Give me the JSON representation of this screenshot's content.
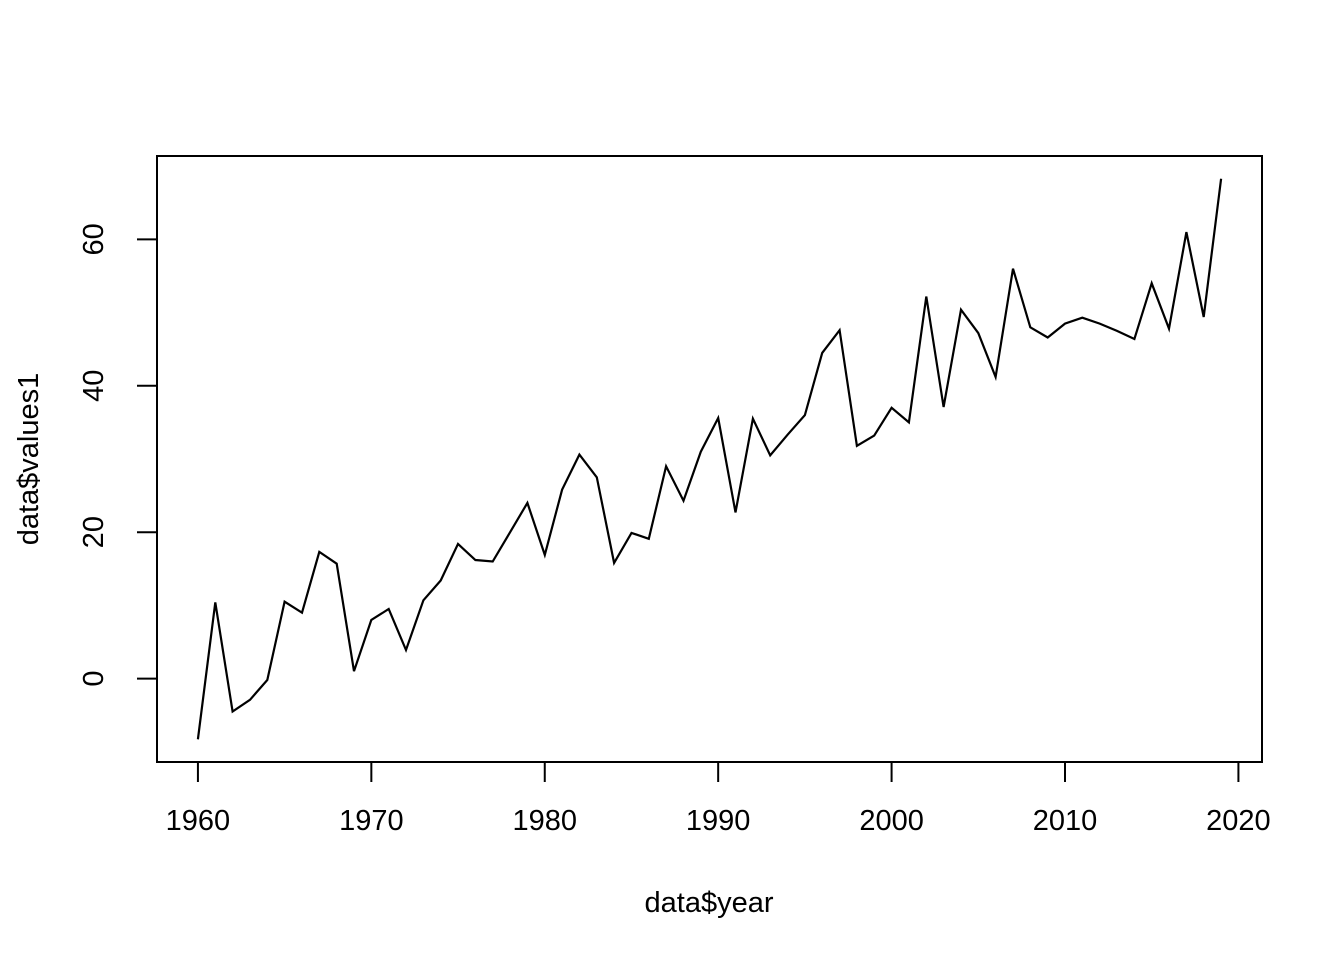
{
  "chart_data": {
    "type": "line",
    "title": "",
    "xlabel": "data$year",
    "ylabel": "data$values1",
    "series_name": "data$values1",
    "x": [
      1960,
      1961,
      1962,
      1963,
      1964,
      1965,
      1966,
      1967,
      1968,
      1969,
      1970,
      1971,
      1972,
      1973,
      1974,
      1975,
      1976,
      1977,
      1978,
      1979,
      1980,
      1981,
      1982,
      1983,
      1984,
      1985,
      1986,
      1987,
      1988,
      1989,
      1990,
      1991,
      1992,
      1993,
      1994,
      1995,
      1996,
      1997,
      1998,
      1999,
      2000,
      2001,
      2002,
      2003,
      2004,
      2005,
      2006,
      2007,
      2008,
      2009,
      2010,
      2011,
      2012,
      2013,
      2014,
      2015,
      2016,
      2017,
      2018,
      2019
    ],
    "values": [
      -8.3,
      10.4,
      -4.5,
      -2.9,
      -0.2,
      10.5,
      9.0,
      17.3,
      15.7,
      1.0,
      8.0,
      9.5,
      3.9,
      10.7,
      13.4,
      18.4,
      16.2,
      16.0,
      20.0,
      24.0,
      16.9,
      25.8,
      30.6,
      27.5,
      15.8,
      19.9,
      19.1,
      29.0,
      24.3,
      31.0,
      35.6,
      22.7,
      35.5,
      30.5,
      33.3,
      36.0,
      44.5,
      47.6,
      31.8,
      33.2,
      37.0,
      35.0,
      52.2,
      37.1,
      50.4,
      47.2,
      41.2,
      56.0,
      48.0,
      46.6,
      48.5,
      49.3,
      48.5,
      47.5,
      46.4,
      54.0,
      47.8,
      61.0,
      49.4,
      68.3
    ],
    "xlim": [
      1957.64,
      2021.36
    ],
    "ylim": [
      -11.4,
      71.4
    ],
    "x_tick_values": [
      1960,
      1970,
      1980,
      1990,
      2000,
      2010,
      2020
    ],
    "x_tick_labels": [
      "1960",
      "1970",
      "1980",
      "1990",
      "2000",
      "2010",
      "2020"
    ],
    "y_tick_values": [
      0,
      20,
      40,
      60
    ],
    "y_tick_labels": [
      "0",
      "20",
      "40",
      "60"
    ],
    "grid": false,
    "legend": null,
    "line_color": "#000000",
    "axis_color": "#000000",
    "background_color": "#ffffff"
  }
}
